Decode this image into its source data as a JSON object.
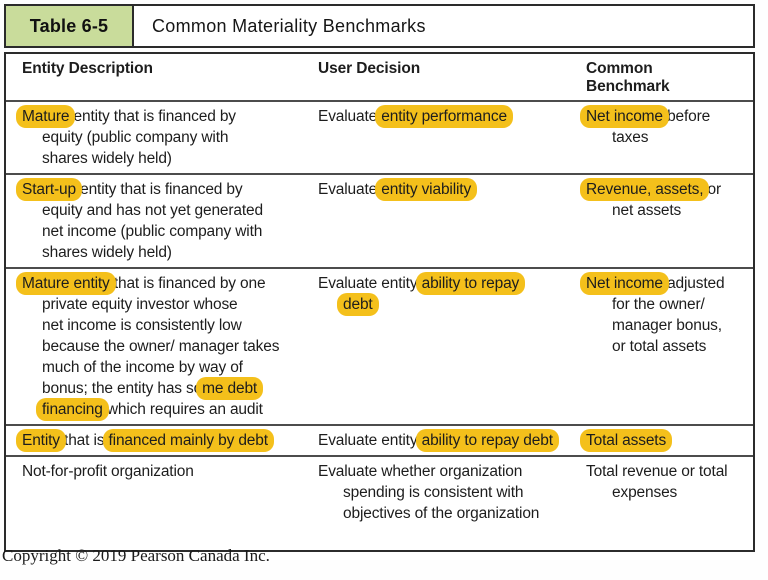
{
  "header": {
    "tag": "Table 6-5",
    "title": "Common Materiality Benchmarks"
  },
  "columns": [
    "Entity Description",
    "User Decision",
    "Common Benchmark"
  ],
  "rows": [
    {
      "cells": [
        [
          {
            "indent": false,
            "seg": [
              {
                "t": "Mature",
                "h": true
              },
              {
                "t": " entity that is financed by",
                "h": false
              }
            ]
          },
          {
            "indent": true,
            "seg": [
              {
                "t": "equity (public company with",
                "h": false
              }
            ]
          },
          {
            "indent": true,
            "seg": [
              {
                "t": "shares widely held)",
                "h": false
              }
            ]
          }
        ],
        [
          {
            "indent": false,
            "seg": [
              {
                "t": "Evaluate ",
                "h": false
              },
              {
                "t": "entity performance",
                "h": true
              }
            ]
          }
        ],
        [
          {
            "indent": false,
            "seg": [
              {
                "t": "Net income",
                "h": true
              },
              {
                "t": " before",
                "h": false
              }
            ]
          },
          {
            "indent": true,
            "seg": [
              {
                "t": "taxes",
                "h": false
              }
            ]
          }
        ]
      ]
    },
    {
      "cells": [
        [
          {
            "indent": false,
            "seg": [
              {
                "t": "Start-up",
                "h": true
              },
              {
                "t": " entity that is financed by",
                "h": false
              }
            ]
          },
          {
            "indent": true,
            "seg": [
              {
                "t": "equity and has not yet generated",
                "h": false
              }
            ]
          },
          {
            "indent": true,
            "seg": [
              {
                "t": "net income (public company with",
                "h": false
              }
            ]
          },
          {
            "indent": true,
            "seg": [
              {
                "t": "shares widely held)",
                "h": false
              }
            ]
          }
        ],
        [
          {
            "indent": false,
            "seg": [
              {
                "t": "Evaluate ",
                "h": false
              },
              {
                "t": "entity viability",
                "h": true
              }
            ]
          }
        ],
        [
          {
            "indent": false,
            "seg": [
              {
                "t": "Revenue, assets,",
                "h": true
              },
              {
                "t": " or",
                "h": false
              }
            ]
          },
          {
            "indent": true,
            "seg": [
              {
                "t": "net assets",
                "h": false
              }
            ]
          }
        ]
      ]
    },
    {
      "cells": [
        [
          {
            "indent": false,
            "seg": [
              {
                "t": "Mature entity",
                "h": true
              },
              {
                "t": " that is financed by one",
                "h": false
              }
            ]
          },
          {
            "indent": true,
            "seg": [
              {
                "t": "private equity investor whose",
                "h": false
              }
            ]
          },
          {
            "indent": true,
            "seg": [
              {
                "t": "net income is consistently low",
                "h": false
              }
            ]
          },
          {
            "indent": true,
            "seg": [
              {
                "t": "because the owner/ manager takes",
                "h": false
              }
            ]
          },
          {
            "indent": true,
            "seg": [
              {
                "t": "much of the income by way of",
                "h": false
              }
            ]
          },
          {
            "indent": true,
            "seg": [
              {
                "t": "bonus; the entity has so",
                "h": false
              },
              {
                "t": "me debt",
                "h": true
              }
            ]
          },
          {
            "indent": true,
            "seg": [
              {
                "t": "financing",
                "h": true
              },
              {
                "t": " which requires an audit",
                "h": false
              }
            ]
          }
        ],
        [
          {
            "indent": false,
            "seg": [
              {
                "t": "Evaluate entity ",
                "h": false
              },
              {
                "t": "ability to repay",
                "h": true
              }
            ]
          },
          {
            "indent": true,
            "seg": [
              {
                "t": "debt",
                "h": true
              }
            ]
          }
        ],
        [
          {
            "indent": false,
            "seg": [
              {
                "t": "Net income",
                "h": true
              },
              {
                "t": " adjusted",
                "h": false
              }
            ]
          },
          {
            "indent": true,
            "seg": [
              {
                "t": "for the owner/",
                "h": false
              }
            ]
          },
          {
            "indent": true,
            "seg": [
              {
                "t": "manager bonus,",
                "h": false
              }
            ]
          },
          {
            "indent": true,
            "seg": [
              {
                "t": "or total assets",
                "h": false
              }
            ]
          }
        ]
      ]
    },
    {
      "cells": [
        [
          {
            "indent": false,
            "seg": [
              {
                "t": "Entity",
                "h": true
              },
              {
                "t": " that is ",
                "h": false
              },
              {
                "t": "financed mainly by debt",
                "h": true
              }
            ]
          }
        ],
        [
          {
            "indent": false,
            "seg": [
              {
                "t": "Evaluate entity ",
                "h": false
              },
              {
                "t": "ability to repay debt",
                "h": true
              }
            ]
          }
        ],
        [
          {
            "indent": false,
            "seg": [
              {
                "t": "Total assets",
                "h": true
              }
            ]
          }
        ]
      ]
    },
    {
      "cells": [
        [
          {
            "indent": false,
            "seg": [
              {
                "t": "Not-for-profit organization",
                "h": false
              }
            ]
          }
        ],
        [
          {
            "indent": false,
            "seg": [
              {
                "t": "Evaluate whether organization",
                "h": false
              }
            ]
          },
          {
            "indent": true,
            "seg": [
              {
                "t": "spending is consistent with",
                "h": false
              }
            ]
          },
          {
            "indent": true,
            "seg": [
              {
                "t": "objectives of the organization",
                "h": false
              }
            ]
          }
        ],
        [
          {
            "indent": false,
            "seg": [
              {
                "t": "Total revenue or total",
                "h": false
              }
            ]
          },
          {
            "indent": true,
            "seg": [
              {
                "t": "expenses",
                "h": false
              }
            ]
          }
        ]
      ]
    }
  ],
  "footer": {
    "copyright": "Copyright © 2019 Pearson Canada Inc."
  },
  "colors": {
    "highlight": "#f4c01b",
    "tag_bg": "#c9dc9b"
  }
}
